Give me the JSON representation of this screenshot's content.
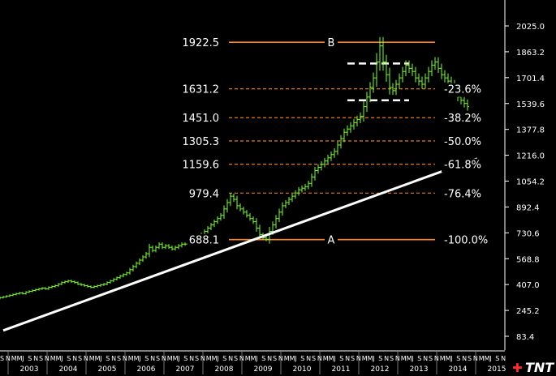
{
  "chart_data": {
    "type": "bar",
    "subtype": "ohlc-monthly",
    "title": "",
    "xlabel": "",
    "ylabel": "",
    "ylim": [
      0,
      2150
    ],
    "y_ticks": [
      "2025.0",
      "1863.2",
      "1701.4",
      "1539.6",
      "1377.8",
      "1216.0",
      "1054.2",
      "892.4",
      "730.6",
      "568.8",
      "407.0",
      "245.2",
      "83.4"
    ],
    "x_years": [
      "2003",
      "2004",
      "2005",
      "2006",
      "2007",
      "2008",
      "2009",
      "2010",
      "2011",
      "2012",
      "2013",
      "2014",
      "2015"
    ],
    "x_month_pattern": [
      "J",
      "F",
      "M",
      "A",
      "M",
      "J",
      "J",
      "A",
      "S",
      "O",
      "N",
      "D"
    ],
    "x_month_strip_labels": [
      "S",
      "N",
      "M",
      "M",
      "J",
      "S",
      "N"
    ],
    "fibonacci_levels": [
      {
        "price": 1922.5,
        "price_label": "1922.5",
        "pct_label": "",
        "line": "solid"
      },
      {
        "price": 1631.2,
        "price_label": "1631.2",
        "pct_label": "-23.6%",
        "line": "dashed"
      },
      {
        "price": 1451.0,
        "price_label": "1451.0",
        "pct_label": "-38.2%",
        "line": "dashed"
      },
      {
        "price": 1305.3,
        "price_label": "1305.3",
        "pct_label": "-50.0%",
        "line": "dashed"
      },
      {
        "price": 1159.6,
        "price_label": "1159.6",
        "pct_label": "-61.8%",
        "line": "dashed"
      },
      {
        "price": 979.4,
        "price_label": "979.4",
        "pct_label": "-76.4%",
        "line": "dashed"
      },
      {
        "price": 688.1,
        "price_label": "688.1",
        "pct_label": "-100.0%",
        "line": "solid"
      }
    ],
    "point_labels": {
      "high": "B",
      "low": "A"
    },
    "trendline": {
      "start": {
        "date": "2002-11",
        "price": 120
      },
      "end": {
        "date": "2015-01",
        "price": 1195
      }
    },
    "range_box": {
      "start": "2011-09",
      "end": "2013-04",
      "top": 1790,
      "bottom": 1560
    },
    "series": [
      {
        "start": "2002-09",
        "close": [
          320,
          325,
          330,
          335,
          340,
          345,
          350,
          355,
          350,
          360,
          365,
          370,
          375,
          380,
          385,
          380,
          390,
          395,
          400,
          410,
          420,
          425,
          430,
          425,
          420,
          410,
          405,
          400,
          395,
          390,
          395,
          400,
          405,
          410,
          420,
          430,
          440,
          450,
          460,
          470,
          480,
          500,
          520,
          540,
          560,
          580,
          600,
          640,
          620,
          640,
          660,
          640,
          650,
          640,
          630,
          640,
          650,
          660,
          660,
          670,
          680,
          690,
          700,
          720,
          740,
          760,
          780,
          800,
          820,
          840,
          880,
          920,
          960,
          940,
          900,
          880,
          860,
          840,
          820,
          800,
          760,
          720,
          700,
          690,
          740,
          780,
          820,
          860,
          900,
          920,
          940,
          960,
          980,
          1000,
          1010,
          1020,
          1040,
          1080,
          1120,
          1140,
          1160,
          1180,
          1200,
          1220,
          1240,
          1280,
          1320,
          1360,
          1380,
          1400,
          1420,
          1440,
          1460,
          1520,
          1580,
          1640,
          1700,
          1800,
          1900,
          1800,
          1720,
          1640,
          1620,
          1660,
          1700,
          1740,
          1780,
          1760,
          1740,
          1700,
          1680,
          1660,
          1700,
          1740,
          1780,
          1800,
          1760,
          1720,
          1700,
          1680,
          1660,
          1620,
          1580,
          1560,
          1540,
          1520
        ]
      }
    ]
  }
}
